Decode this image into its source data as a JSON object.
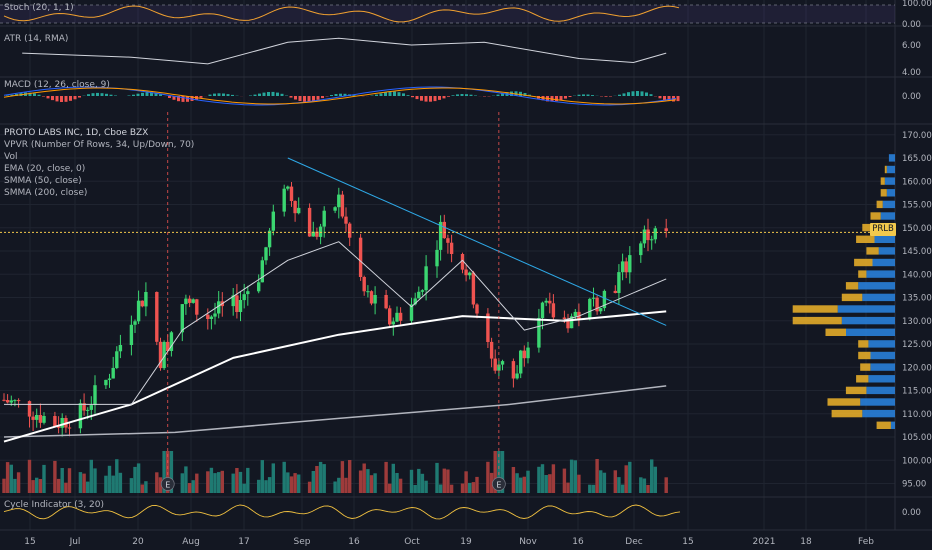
{
  "legends": {
    "stoch": "Stoch (20, 1, 1)",
    "atr": "ATR (14, RMA)",
    "macd": "MACD (12, 26, close, 9)",
    "main": [
      "PROTO LABS INC, 1D, Cboe BZX",
      "VPVR (Number Of Rows, 34, Up/Down, 70)",
      "Vol",
      "EMA (20, close, 0)",
      "SMMA (50, close)",
      "SMMA (200, close)"
    ],
    "cycle": "Cycle Indicator (3, 20)"
  },
  "symbol_tag": "PRLB",
  "colors": {
    "background": "#131722",
    "up": "#26a69a",
    "up_bright": "#3bd671",
    "down": "#ef5350",
    "volume_up": "#1f7a72",
    "volume_down": "#9e3b3b",
    "vpvr_up": "#2980d9",
    "vpvr_down": "#f0b429",
    "trendline": "#2ea8e6",
    "last_price": "#f2c94c",
    "ema20": "#d1d4dc",
    "smma50": "#ffffff",
    "smma200": "#b2b5be",
    "stoch": "#f0a030",
    "macd_line": "#2962ff",
    "signal_line": "#ff9800",
    "cycle_line": "#f0c040"
  },
  "chart_data": [
    {
      "name": "Stoch (20, 1, 1)",
      "type": "line",
      "y_ticks": [
        "100.00",
        "0.00"
      ],
      "ylim": [
        0,
        100
      ]
    },
    {
      "name": "ATR (14, RMA)",
      "type": "line",
      "y_ticks": [
        "6.00",
        "4.00"
      ],
      "x": [
        "2020-06-20",
        "2020-07-20",
        "2020-08-10",
        "2020-09-01",
        "2020-09-15",
        "2020-10-05",
        "2020-10-25",
        "2020-11-20",
        "2020-12-05",
        "2020-12-14"
      ],
      "values": [
        5.4,
        5.1,
        4.6,
        6.2,
        6.5,
        6.0,
        6.2,
        5.0,
        4.7,
        5.4
      ]
    },
    {
      "name": "MACD (12, 26, close, 9)",
      "type": "bar",
      "y_ticks": [
        "0.00"
      ]
    },
    {
      "name": "PROTO LABS INC, 1D, Cboe BZX",
      "type": "candlestick",
      "y_ticks": [
        "170.00",
        "165.00",
        "160.00",
        "155.00",
        "150.00",
        "145.00",
        "140.00",
        "135.00",
        "130.00",
        "125.00",
        "120.00",
        "115.00",
        "110.00",
        "105.00",
        "100.00",
        "95.00"
      ],
      "ylim": [
        91,
        172
      ],
      "x_ticks": [
        "15",
        "Jul",
        "20",
        "Aug",
        "17",
        "Sep",
        "16",
        "Oct",
        "19",
        "Nov",
        "16",
        "Dec",
        "15",
        "2021",
        "18",
        "Feb"
      ],
      "last_price": 149.0,
      "price_path": [
        {
          "x": "2020-06-15",
          "close": 113
        },
        {
          "x": "2020-06-22",
          "close": 111
        },
        {
          "x": "2020-06-29",
          "close": 108
        },
        {
          "x": "2020-07-06",
          "close": 110
        },
        {
          "x": "2020-07-13",
          "close": 117
        },
        {
          "x": "2020-07-20",
          "close": 131
        },
        {
          "x": "2020-07-24",
          "close": 136
        },
        {
          "x": "2020-07-28",
          "close": 122
        },
        {
          "x": "2020-08-03",
          "close": 134
        },
        {
          "x": "2020-08-10",
          "close": 131
        },
        {
          "x": "2020-08-17",
          "close": 133
        },
        {
          "x": "2020-08-24",
          "close": 140
        },
        {
          "x": "2020-08-31",
          "close": 160
        },
        {
          "x": "2020-09-08",
          "close": 148
        },
        {
          "x": "2020-09-15",
          "close": 156
        },
        {
          "x": "2020-09-22",
          "close": 136
        },
        {
          "x": "2020-09-29",
          "close": 130
        },
        {
          "x": "2020-10-06",
          "close": 134
        },
        {
          "x": "2020-10-13",
          "close": 150
        },
        {
          "x": "2020-10-20",
          "close": 141
        },
        {
          "x": "2020-10-27",
          "close": 121
        },
        {
          "x": "2020-11-02",
          "close": 118
        },
        {
          "x": "2020-11-09",
          "close": 133
        },
        {
          "x": "2020-11-16",
          "close": 130
        },
        {
          "x": "2020-11-23",
          "close": 133
        },
        {
          "x": "2020-11-30",
          "close": 138
        },
        {
          "x": "2020-12-07",
          "close": 148
        },
        {
          "x": "2020-12-14",
          "close": 149
        }
      ],
      "ema20": [
        {
          "x": "2020-06-15",
          "y": 112
        },
        {
          "x": "2020-07-20",
          "y": 112
        },
        {
          "x": "2020-08-03",
          "y": 128
        },
        {
          "x": "2020-09-01",
          "y": 143
        },
        {
          "x": "2020-09-15",
          "y": 147
        },
        {
          "x": "2020-10-05",
          "y": 133
        },
        {
          "x": "2020-10-19",
          "y": 143
        },
        {
          "x": "2020-11-05",
          "y": 128
        },
        {
          "x": "2020-11-20",
          "y": 131
        },
        {
          "x": "2020-12-14",
          "y": 139
        }
      ],
      "smma50": [
        {
          "x": "2020-06-15",
          "y": 104
        },
        {
          "x": "2020-07-20",
          "y": 112
        },
        {
          "x": "2020-08-17",
          "y": 122
        },
        {
          "x": "2020-09-15",
          "y": 127
        },
        {
          "x": "2020-10-19",
          "y": 131
        },
        {
          "x": "2020-11-16",
          "y": 130
        },
        {
          "x": "2020-12-14",
          "y": 132
        }
      ],
      "smma200": [
        {
          "x": "2020-06-15",
          "y": 105
        },
        {
          "x": "2020-08-01",
          "y": 106
        },
        {
          "x": "2020-09-15",
          "y": 109
        },
        {
          "x": "2020-11-01",
          "y": 112
        },
        {
          "x": "2020-12-14",
          "y": 116
        }
      ],
      "trendline": [
        {
          "x": "2020-09-01",
          "y": 165
        },
        {
          "x": "2020-12-14",
          "y": 129
        }
      ],
      "earnings_markers": [
        "2020-07-30",
        "2020-10-29"
      ],
      "earnings_label": "E",
      "vpvr_rows": [
        {
          "price": 165,
          "up": 3,
          "down": 0
        },
        {
          "price": 162.5,
          "up": 4,
          "down": 1
        },
        {
          "price": 160,
          "up": 5,
          "down": 2
        },
        {
          "price": 157.5,
          "up": 4,
          "down": 3
        },
        {
          "price": 155,
          "up": 6,
          "down": 3
        },
        {
          "price": 152.5,
          "up": 7,
          "down": 5
        },
        {
          "price": 150,
          "up": 9,
          "down": 7
        },
        {
          "price": 147.5,
          "up": 10,
          "down": 9
        },
        {
          "price": 145,
          "up": 8,
          "down": 6
        },
        {
          "price": 142.5,
          "up": 11,
          "down": 9
        },
        {
          "price": 140,
          "up": 14,
          "down": 4
        },
        {
          "price": 137.5,
          "up": 18,
          "down": 6
        },
        {
          "price": 135,
          "up": 16,
          "down": 10
        },
        {
          "price": 132.5,
          "up": 28,
          "down": 22
        },
        {
          "price": 130,
          "up": 26,
          "down": 24
        },
        {
          "price": 127.5,
          "up": 24,
          "down": 10
        },
        {
          "price": 125,
          "up": 13,
          "down": 5
        },
        {
          "price": 122.5,
          "up": 12,
          "down": 6
        },
        {
          "price": 120,
          "up": 12,
          "down": 5
        },
        {
          "price": 117.5,
          "up": 13,
          "down": 6
        },
        {
          "price": 115,
          "up": 14,
          "down": 10
        },
        {
          "price": 112.5,
          "up": 17,
          "down": 16
        },
        {
          "price": 110,
          "up": 16,
          "down": 15
        },
        {
          "price": 107.5,
          "up": 2,
          "down": 7
        }
      ]
    },
    {
      "name": "Cycle Indicator (3, 20)",
      "type": "line",
      "y_ticks": [
        "0.00"
      ]
    }
  ]
}
